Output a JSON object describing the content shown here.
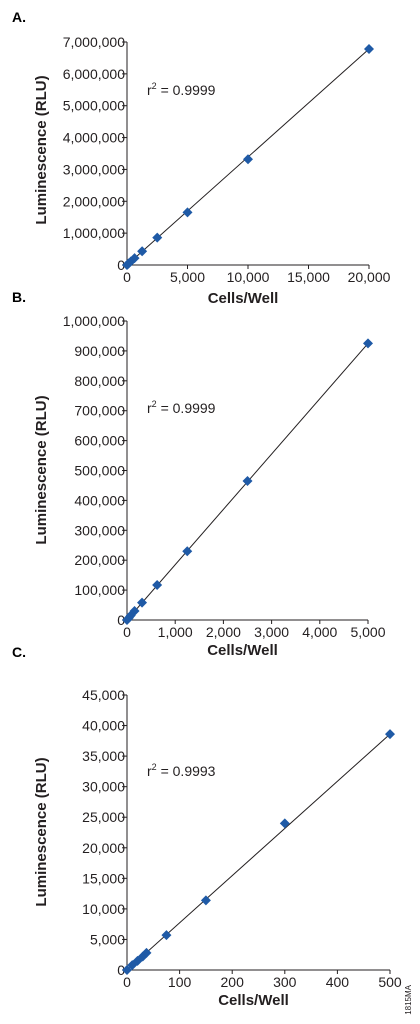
{
  "figure_id": "1815MA",
  "chart_data": [
    {
      "panel": "A.",
      "type": "scatter",
      "xlabel": "Cells/Well",
      "ylabel": "Luminescence (RLU)",
      "annotation": {
        "prefix": "r",
        "sup": "2",
        "value": " = 0.9999"
      },
      "xlim": [
        0,
        20000
      ],
      "ylim": [
        0,
        7000000
      ],
      "xticks": [
        {
          "v": 0,
          "label": "0"
        },
        {
          "v": 5000,
          "label": "5,000"
        },
        {
          "v": 10000,
          "label": "10,000"
        },
        {
          "v": 15000,
          "label": "15,000"
        },
        {
          "v": 20000,
          "label": "20,000"
        }
      ],
      "yticks": [
        {
          "v": 0,
          "label": "0"
        },
        {
          "v": 1000000,
          "label": "1,000,000"
        },
        {
          "v": 2000000,
          "label": "2,000,000"
        },
        {
          "v": 3000000,
          "label": "3,000,000"
        },
        {
          "v": 4000000,
          "label": "4,000,000"
        },
        {
          "v": 5000000,
          "label": "5,000,000"
        },
        {
          "v": 6000000,
          "label": "6,000,000"
        },
        {
          "v": 7000000,
          "label": "7,000,000"
        }
      ],
      "points": [
        {
          "x": 0,
          "y": 0
        },
        {
          "x": 78,
          "y": 27000
        },
        {
          "x": 156,
          "y": 54000
        },
        {
          "x": 312,
          "y": 108000
        },
        {
          "x": 625,
          "y": 215000
        },
        {
          "x": 1250,
          "y": 430000
        },
        {
          "x": 2500,
          "y": 860000
        },
        {
          "x": 5000,
          "y": 1650000
        },
        {
          "x": 10000,
          "y": 3320000
        },
        {
          "x": 20000,
          "y": 6780000
        }
      ],
      "fit": {
        "x": [
          0,
          20000
        ],
        "y": [
          0,
          6780000
        ]
      }
    },
    {
      "panel": "B.",
      "type": "scatter",
      "xlabel": "Cells/Well",
      "ylabel": "Luminescence (RLU)",
      "annotation": {
        "prefix": "r",
        "sup": "2",
        "value": " = 0.9999"
      },
      "xlim": [
        0,
        5000
      ],
      "ylim": [
        0,
        1000000
      ],
      "xticks": [
        {
          "v": 0,
          "label": "0"
        },
        {
          "v": 1000,
          "label": "1,000"
        },
        {
          "v": 2000,
          "label": "2,000"
        },
        {
          "v": 3000,
          "label": "3,000"
        },
        {
          "v": 4000,
          "label": "4,000"
        },
        {
          "v": 5000,
          "label": "5,000"
        }
      ],
      "yticks": [
        {
          "v": 0,
          "label": "0"
        },
        {
          "v": 100000,
          "label": "100,000"
        },
        {
          "v": 200000,
          "label": "200,000"
        },
        {
          "v": 300000,
          "label": "300,000"
        },
        {
          "v": 400000,
          "label": "400,000"
        },
        {
          "v": 500000,
          "label": "500,000"
        },
        {
          "v": 600000,
          "label": "600,000"
        },
        {
          "v": 700000,
          "label": "700,000"
        },
        {
          "v": 800000,
          "label": "800,000"
        },
        {
          "v": 900000,
          "label": "900,000"
        },
        {
          "v": 1000000,
          "label": "1,000,000"
        }
      ],
      "points": [
        {
          "x": 0,
          "y": 0
        },
        {
          "x": 39,
          "y": 7000
        },
        {
          "x": 78,
          "y": 15000
        },
        {
          "x": 156,
          "y": 30000
        },
        {
          "x": 312,
          "y": 58000
        },
        {
          "x": 625,
          "y": 117000
        },
        {
          "x": 1250,
          "y": 230000
        },
        {
          "x": 2500,
          "y": 465000
        },
        {
          "x": 5000,
          "y": 925000
        }
      ],
      "fit": {
        "x": [
          0,
          5000
        ],
        "y": [
          0,
          925000
        ]
      }
    },
    {
      "panel": "C.",
      "type": "scatter",
      "xlabel": "Cells/Well",
      "ylabel": "Luminescence (RLU)",
      "annotation": {
        "prefix": "r",
        "sup": "2",
        "value": " = 0.9993"
      },
      "xlim": [
        0,
        500
      ],
      "ylim": [
        0,
        45000
      ],
      "xticks": [
        {
          "v": 0,
          "label": "0"
        },
        {
          "v": 100,
          "label": "100"
        },
        {
          "v": 200,
          "label": "200"
        },
        {
          "v": 300,
          "label": "300"
        },
        {
          "v": 400,
          "label": "400"
        },
        {
          "v": 500,
          "label": "500"
        }
      ],
      "yticks": [
        {
          "v": 0,
          "label": "0"
        },
        {
          "v": 5000,
          "label": "5,000"
        },
        {
          "v": 10000,
          "label": "10,000"
        },
        {
          "v": 15000,
          "label": "15,000"
        },
        {
          "v": 20000,
          "label": "20,000"
        },
        {
          "v": 25000,
          "label": "25,000"
        },
        {
          "v": 30000,
          "label": "30,000"
        },
        {
          "v": 35000,
          "label": "35,000"
        },
        {
          "v": 40000,
          "label": "40,000"
        },
        {
          "v": 45000,
          "label": "45,000"
        }
      ],
      "points": [
        {
          "x": 0,
          "y": 0
        },
        {
          "x": 10,
          "y": 800
        },
        {
          "x": 20,
          "y": 1500
        },
        {
          "x": 30,
          "y": 2200
        },
        {
          "x": 37,
          "y": 2800
        },
        {
          "x": 75,
          "y": 5700
        },
        {
          "x": 150,
          "y": 11400
        },
        {
          "x": 300,
          "y": 24000
        },
        {
          "x": 500,
          "y": 38600
        }
      ],
      "fit": {
        "x": [
          0,
          500
        ],
        "y": [
          0,
          38600
        ]
      }
    }
  ]
}
